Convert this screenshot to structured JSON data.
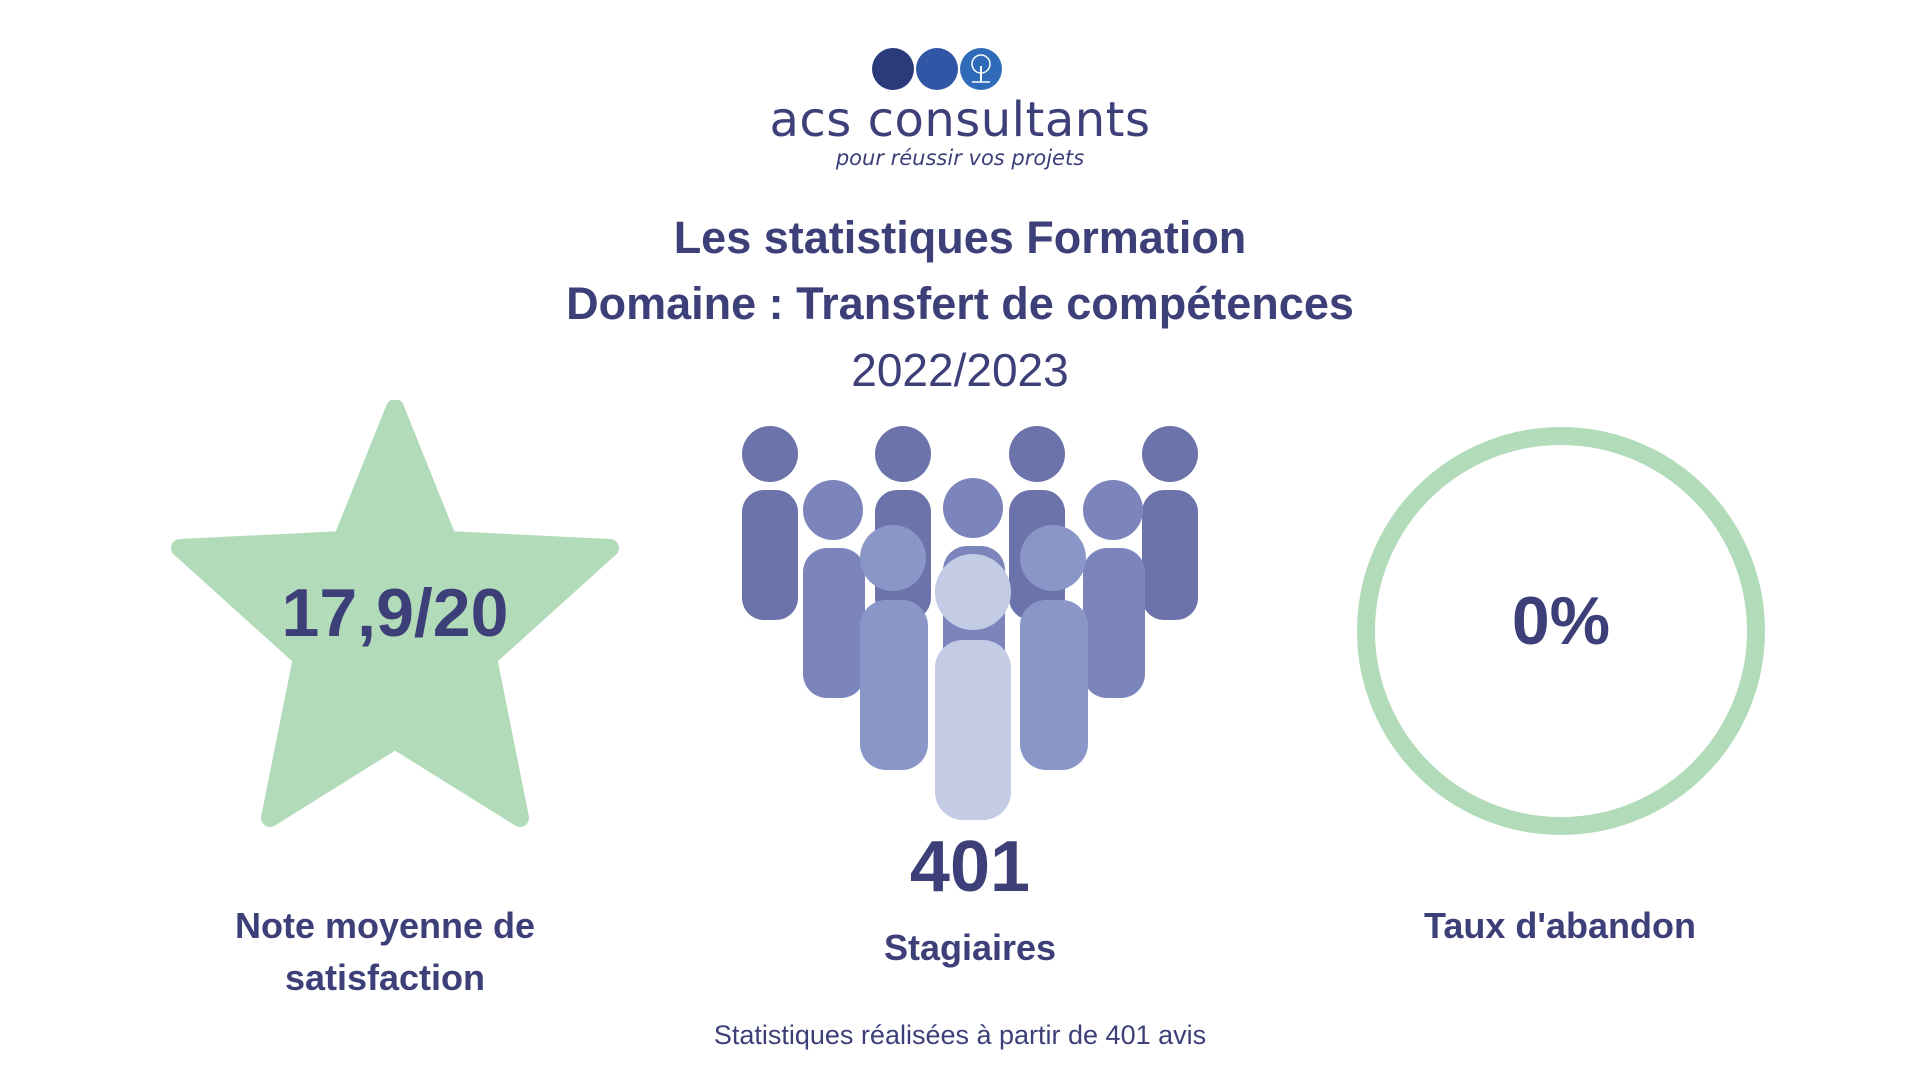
{
  "logo": {
    "name": "acs consultants",
    "tagline": "pour réussir vos projets",
    "dot_colors": [
      "#2b3a7a",
      "#3156a6",
      "#2f6bb8"
    ]
  },
  "header": {
    "title_line1": "Les statistiques Formation",
    "title_line2": "Domaine : Transfert de compétences",
    "year": "2022/2023"
  },
  "stats": {
    "satisfaction": {
      "value": "17,9/20",
      "label": "Note moyenne de satisfaction",
      "icon": "star-icon"
    },
    "participants": {
      "value": "401",
      "label": "Stagiaires",
      "icon": "people-group-icon"
    },
    "dropout": {
      "value": "0%",
      "label": "Taux d'abandon",
      "icon": "ring-icon"
    }
  },
  "footnote": "Statistiques réalisées à partir de 401 avis",
  "colors": {
    "text": "#3c3f78",
    "star": "#b2dbb9",
    "ring": "#b2dbb9",
    "people_dark": "#6b73aa",
    "people_mid": "#8a96c8",
    "people_light": "#c3cbe5"
  }
}
